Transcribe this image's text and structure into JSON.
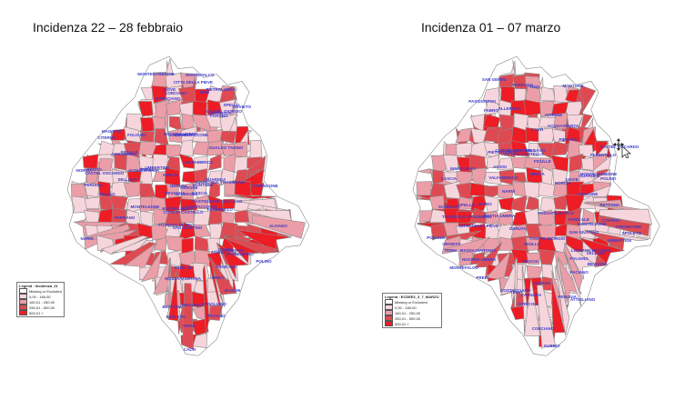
{
  "maps": [
    {
      "title": "Incidenza 22 – 28 febbraio",
      "legend": {
        "title": "Legend : Incidenza_21",
        "classes": [
          "Missing or Excluded",
          "0,00 - 160,00",
          "160,01 - 250,00",
          "250,01 - 500,00",
          "500,01 +"
        ]
      },
      "labels": [
        "SAN GIUSTINO",
        "CITERNA",
        "CITTA DI CASTELLO",
        "MONTONE",
        "PIETRALUNGA",
        "GUBBIO",
        "SCHEGGIA",
        "COSTACCIARO",
        "SIGILLO",
        "FOSSATO DI VICO",
        "GUALDO TADINO",
        "NOCERA UMBRA",
        "VALFABBRICA",
        "UMBERTIDE",
        "LISCIANO NICCONE",
        "TUORO SUL TRASIMENO",
        "PASSIGNANO",
        "MAGIONE",
        "CORCIANO",
        "PERUGIA",
        "ASSISI",
        "BASTIA UMBRA",
        "BETTONA",
        "BEVAGNA",
        "FOLIGNO",
        "SPELLO",
        "CANNARA",
        "MONTEFALCO",
        "TREVI",
        "SELLANO",
        "PRECI",
        "NORCIA",
        "CASCIA",
        "SPOLETO",
        "CASTIGLIONE DEL LAGO",
        "PANICALE",
        "PACIANO",
        "PIEGARO",
        "CITTA DELLA PIEVE",
        "MONTELEONE",
        "FABRO",
        "FICULLE",
        "ORVIETO",
        "TODI",
        "MARSCIANO",
        "DERUTA",
        "MASSA MARTANA",
        "GIANO",
        "ACQUASPARTA",
        "SAN GEMINI",
        "NARNI",
        "AMELIA",
        "TERNI",
        "ARRONE",
        "FERENTILLO",
        "POLINO",
        "STRONCONE",
        "OTRICOLI",
        "CALVI",
        "ATTIGLIANO",
        "GIOVE",
        "ALVIANO",
        "GUARDEA",
        "BASCHI",
        "ALLERONA",
        "CASTEL VISCARDO",
        "CASTEL GIORGIO",
        "PORANO",
        "PARRANO",
        "MONTEGABBIONE"
      ]
    },
    {
      "title": "Incidenza 01 – 07 marzo",
      "legend": {
        "title": "Legend : ECDEE2_3_7_MARZO",
        "classes": [
          "Missing or Excluded",
          "0,00 - 160,00",
          "160,01 - 250,00",
          "250,01 - 500,00",
          "500,01 +"
        ]
      },
      "labels": [
        "SAN GIUSTINO",
        "CITERNA",
        "CITTA DI CASTELLO",
        "MONTONE",
        "PIETRALUNGA",
        "GUBBIO",
        "SCHEGGIA",
        "COSTACCIARO",
        "SIGILLO",
        "FOSSATO DI VICO",
        "GUALDO TADINO",
        "NOCERA UMBRA",
        "VALFABBRICA",
        "UMBERTIDE",
        "LISCIANO NICCONE",
        "TUORO SUL TRASIMENO",
        "PASSIGNANO",
        "MAGIONE",
        "CORCIANO",
        "PERUGIA",
        "ASSISI",
        "BASTIA UMBRA",
        "BETTONA",
        "BEVAGNA",
        "FOLIGNO",
        "SPELLO",
        "CANNARA",
        "MONTEFALCO",
        "TREVI",
        "SELLANO",
        "PRECI",
        "NORCIA",
        "CASCIA",
        "SPOLETO",
        "CASTIGLIONE DEL LAGO",
        "PANICALE",
        "PACIANO",
        "PIEGARO",
        "CITTA DELLA PIEVE",
        "MONTELEONE",
        "FABRO",
        "FICULLE",
        "ORVIETO",
        "TODI",
        "MARSCIANO",
        "DERUTA",
        "MASSA MARTANA",
        "GIANO",
        "ACQUASPARTA",
        "SAN GEMINI",
        "NARNI",
        "AMELIA",
        "TERNI",
        "ARRONE",
        "FERENTILLO",
        "POLINO",
        "STRONCONE",
        "OTRICOLI",
        "CALVI",
        "ATTIGLIANO",
        "GIOVE",
        "ALVIANO",
        "GUARDEA",
        "BASCHI",
        "ALLERONA",
        "CASTEL VISCARDO",
        "CASTEL GIORGIO",
        "PORANO",
        "PARRANO",
        "MONTEGABBIONE"
      ]
    }
  ],
  "colors": {
    "missing": "#ffffff",
    "class1": "#f6d6dc",
    "class2": "#eb9ea8",
    "class3": "#df4a52",
    "class4": "#ee1c24",
    "border": "#8a8a8a",
    "label": "#3a3acc"
  }
}
